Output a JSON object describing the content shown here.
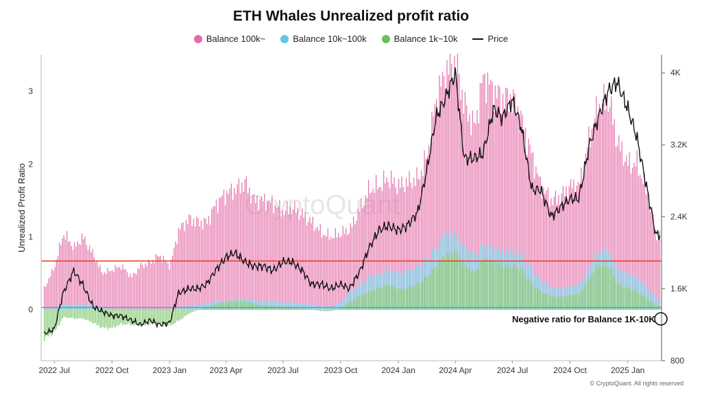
{
  "chart_data": {
    "type": "bar",
    "title": "ETH Whales Unrealized profit ratio",
    "ylabel": "Unrealized Profit Ratio",
    "y2label": "",
    "ylim": [
      -0.7,
      3.5
    ],
    "y2lim": [
      800,
      4200
    ],
    "yticks": [
      0,
      1,
      2,
      3
    ],
    "y2ticks": [
      "800",
      "1.6K",
      "2.4K",
      "3.2K",
      "4K"
    ],
    "y2tick_values": [
      800,
      1600,
      2400,
      3200,
      4000
    ],
    "x_tick_labels": [
      "2022 Jul",
      "2022 Oct",
      "2023 Jan",
      "2023 Apr",
      "2023 Jul",
      "2023 Oct",
      "2024 Jan",
      "2024 Apr",
      "2024 Jul",
      "2024 Oct",
      "2025 Jan"
    ],
    "x_dates": [
      "2022-06-15",
      "2022-07-01",
      "2022-07-15",
      "2022-08-01",
      "2022-08-15",
      "2022-09-01",
      "2022-09-15",
      "2022-10-01",
      "2022-10-15",
      "2022-11-01",
      "2022-11-15",
      "2022-12-01",
      "2022-12-15",
      "2023-01-01",
      "2023-01-15",
      "2023-02-01",
      "2023-02-15",
      "2023-03-01",
      "2023-03-15",
      "2023-04-01",
      "2023-04-15",
      "2023-05-01",
      "2023-05-15",
      "2023-06-01",
      "2023-06-15",
      "2023-07-01",
      "2023-07-15",
      "2023-08-01",
      "2023-08-15",
      "2023-09-01",
      "2023-09-15",
      "2023-10-01",
      "2023-10-15",
      "2023-11-01",
      "2023-11-15",
      "2023-12-01",
      "2023-12-15",
      "2024-01-01",
      "2024-01-15",
      "2024-02-01",
      "2024-02-15",
      "2024-03-01",
      "2024-03-15",
      "2024-04-01",
      "2024-04-15",
      "2024-05-01",
      "2024-05-15",
      "2024-06-01",
      "2024-06-15",
      "2024-07-01",
      "2024-07-15",
      "2024-08-01",
      "2024-08-15",
      "2024-09-01",
      "2024-09-15",
      "2024-10-01",
      "2024-10-15",
      "2024-11-01",
      "2024-11-15",
      "2024-12-01",
      "2024-12-15",
      "2025-01-01",
      "2025-01-15",
      "2025-02-01",
      "2025-02-15"
    ],
    "series": [
      {
        "name": "Balance 100k~",
        "color": "#e46aa7",
        "values": [
          0.3,
          0.6,
          1.05,
          0.85,
          1.0,
          0.75,
          0.5,
          0.55,
          0.6,
          0.45,
          0.6,
          0.65,
          0.75,
          0.6,
          1.1,
          1.25,
          1.2,
          1.2,
          1.45,
          1.6,
          1.65,
          1.75,
          1.5,
          1.5,
          1.45,
          1.35,
          1.4,
          1.3,
          1.2,
          1.05,
          1.0,
          1.05,
          1.1,
          1.4,
          1.65,
          1.7,
          1.8,
          1.7,
          1.75,
          1.8,
          2.1,
          2.9,
          3.25,
          3.4,
          2.8,
          2.5,
          3.2,
          3.0,
          2.9,
          2.9,
          2.6,
          2.1,
          1.7,
          1.5,
          1.55,
          1.7,
          1.7,
          2.4,
          2.8,
          2.9,
          2.3,
          2.0,
          2.0,
          1.6,
          1.0
        ]
      },
      {
        "name": "Balance 10k~100k",
        "color": "#5ec9e6",
        "values": [
          0.0,
          0.02,
          0.08,
          0.06,
          0.08,
          0.05,
          0.03,
          0.0,
          0.0,
          0.0,
          0.0,
          0.0,
          0.0,
          0.0,
          0.02,
          0.05,
          0.07,
          0.08,
          0.12,
          0.12,
          0.15,
          0.15,
          0.13,
          0.12,
          0.12,
          0.1,
          0.1,
          0.08,
          0.07,
          0.05,
          0.04,
          0.1,
          0.25,
          0.35,
          0.45,
          0.5,
          0.55,
          0.5,
          0.55,
          0.6,
          0.7,
          0.85,
          1.05,
          1.05,
          0.85,
          0.75,
          0.9,
          0.85,
          0.8,
          0.8,
          0.75,
          0.55,
          0.4,
          0.3,
          0.3,
          0.32,
          0.35,
          0.6,
          0.8,
          0.82,
          0.55,
          0.5,
          0.45,
          0.3,
          0.15
        ]
      },
      {
        "name": "Balance 1k~10k",
        "color": "#6bbf59",
        "values": [
          -0.4,
          -0.3,
          -0.1,
          -0.12,
          -0.12,
          -0.18,
          -0.25,
          -0.25,
          -0.2,
          -0.2,
          -0.22,
          -0.2,
          -0.2,
          -0.22,
          -0.15,
          -0.05,
          0.0,
          0.03,
          0.08,
          0.1,
          0.12,
          0.12,
          0.08,
          0.05,
          0.05,
          0.04,
          0.03,
          0.02,
          0.0,
          -0.02,
          -0.02,
          0.02,
          0.1,
          0.2,
          0.25,
          0.3,
          0.35,
          0.28,
          0.3,
          0.35,
          0.45,
          0.6,
          0.75,
          0.8,
          0.6,
          0.5,
          0.7,
          0.65,
          0.6,
          0.6,
          0.55,
          0.35,
          0.25,
          0.18,
          0.18,
          0.2,
          0.22,
          0.45,
          0.62,
          0.6,
          0.35,
          0.3,
          0.25,
          0.15,
          0.05
        ]
      },
      {
        "name": "Price",
        "color": "#111111",
        "axis": "right",
        "values": [
          1100,
          1150,
          1550,
          1800,
          1650,
          1400,
          1350,
          1300,
          1300,
          1250,
          1200,
          1250,
          1200,
          1220,
          1550,
          1600,
          1600,
          1650,
          1800,
          1950,
          2000,
          1900,
          1850,
          1850,
          1800,
          1900,
          1900,
          1800,
          1650,
          1650,
          1600,
          1650,
          1600,
          1800,
          2050,
          2250,
          2300,
          2250,
          2300,
          2450,
          2900,
          3500,
          3700,
          4000,
          3050,
          3050,
          3100,
          3600,
          3500,
          3700,
          3400,
          2700,
          2700,
          2400,
          2500,
          2600,
          2600,
          3200,
          3500,
          3800,
          3900,
          3600,
          3300,
          2700,
          2200
        ]
      }
    ],
    "reference_lines": [
      {
        "value": 0.67,
        "color": "#e8412b",
        "axis": "left"
      },
      {
        "value": 0.03,
        "color": "#3bb1d6",
        "axis": "left"
      }
    ],
    "legend_position": "top-center",
    "grid": false,
    "annotation": "Negative ratio for Balance 1K-10K",
    "watermark": "CryptoQuant",
    "footer": "© CryptoQuant. All rights reserved"
  }
}
